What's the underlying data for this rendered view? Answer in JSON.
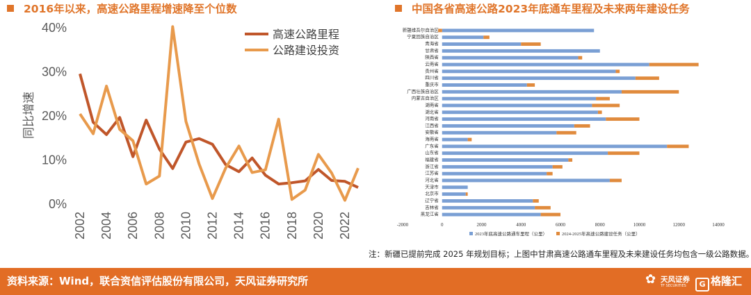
{
  "left": {
    "title": "2016年以来，高速公路里程增速降至个位数"
  },
  "right": {
    "title": "中国各省高速公路2023年底通车里程及未来两年建设任务"
  },
  "note": "注：新疆已提前完成 2025 年规划目标；上图中甘肃高速公路通车里程及未来建设任务均包含一级公路数据。",
  "footer": {
    "source": "资料来源：Wind，联合资信评估股份有限公司，天风证券研究所",
    "logo1_cn": "天风证券",
    "logo1_en": "TF SECURITIES",
    "logo2": "格隆汇",
    "logo2_mark": "G"
  },
  "colors": {
    "accent": "#e0752a",
    "line_mileage": "#c0562a",
    "line_invest": "#e89a4c",
    "bar_existing": "#7a9fd4",
    "bar_task": "#e08a3c",
    "footer_bg": "#e26d25"
  },
  "chart_data": [
    {
      "type": "line",
      "title": "2016年以来，高速公路里程增速降至个位数",
      "ylabel": "同比增速",
      "xlabel": "",
      "x": [
        2002,
        2003,
        2004,
        2005,
        2006,
        2007,
        2008,
        2009,
        2010,
        2011,
        2012,
        2013,
        2014,
        2015,
        2016,
        2017,
        2018,
        2019,
        2020,
        2021,
        2022,
        2023
      ],
      "x_tick_labels": [
        "2002",
        "2004",
        "2006",
        "2008",
        "2010",
        "2012",
        "2014",
        "2016",
        "2018",
        "2020",
        "2022"
      ],
      "ylim": [
        0,
        40
      ],
      "y_ticks": [
        0,
        10,
        20,
        30,
        40
      ],
      "y_tick_labels": [
        "0%",
        "10%",
        "20%",
        "30%",
        "40%"
      ],
      "legend_position": "top-right",
      "grid": false,
      "series": [
        {
          "name": "高速公路里程",
          "color": "#c0562a",
          "values": [
            29.4,
            18.4,
            15.6,
            19.5,
            10.6,
            18.9,
            12.3,
            7.9,
            13.9,
            14.7,
            13.4,
            8.8,
            7.2,
            10.3,
            6.4,
            4.4,
            4.7,
            5.1,
            7.7,
            5.2,
            5.0,
            3.6
          ]
        },
        {
          "name": "公路建设投资",
          "color": "#e89a4c",
          "values": [
            20.3,
            15.8,
            26.6,
            16.8,
            14.2,
            4.4,
            6.2,
            40.1,
            18.6,
            8.9,
            1.1,
            8.0,
            13.0,
            7.0,
            7.6,
            19.1,
            0.9,
            3.0,
            11.1,
            6.9,
            0.7,
            8.0
          ]
        }
      ]
    },
    {
      "type": "bar",
      "orientation": "horizontal",
      "stacked": true,
      "title": "中国各省高速公路2023年底通车里程及未来两年建设任务",
      "categories": [
        "新疆维吾尔自治区",
        "宁夏回族自治区",
        "青海省",
        "甘肃省",
        "陕西省",
        "云南省",
        "贵州省",
        "四川省",
        "重庆市",
        "广西壮族自治区",
        "内蒙古自治区",
        "湖南省",
        "湖北省",
        "河南省",
        "江西省",
        "安徽省",
        "海南省",
        "广东省",
        "山东省",
        "福建省",
        "浙江省",
        "江苏省",
        "河北省",
        "天津市",
        "北京市",
        "辽宁省",
        "吉林省",
        "黑龙江省"
      ],
      "xlim": [
        -2000,
        14000
      ],
      "x_ticks": [
        -2000,
        0,
        2000,
        4000,
        6000,
        8000,
        10000,
        12000,
        14000
      ],
      "legend_position": "bottom",
      "grid": false,
      "series": [
        {
          "name": "2023年底高速公路通车里程（公里）",
          "color": "#7a9fd4",
          "values": [
            7700,
            2100,
            4000,
            8000,
            6900,
            10500,
            8800,
            9800,
            4300,
            9100,
            7800,
            7600,
            7900,
            8300,
            6700,
            5800,
            1300,
            11400,
            8400,
            6400,
            5600,
            5300,
            8500,
            1300,
            1200,
            4600,
            4700,
            5000
          ]
        },
        {
          "name": "2024-2025年高速公路建设任务（公里）",
          "color": "#e08a3c",
          "values": [
            -200,
            300,
            1000,
            0,
            200,
            2500,
            200,
            1200,
            400,
            2900,
            700,
            1400,
            200,
            1700,
            800,
            1000,
            200,
            1100,
            1600,
            200,
            500,
            300,
            600,
            0,
            100,
            300,
            800,
            1000
          ]
        }
      ]
    }
  ]
}
